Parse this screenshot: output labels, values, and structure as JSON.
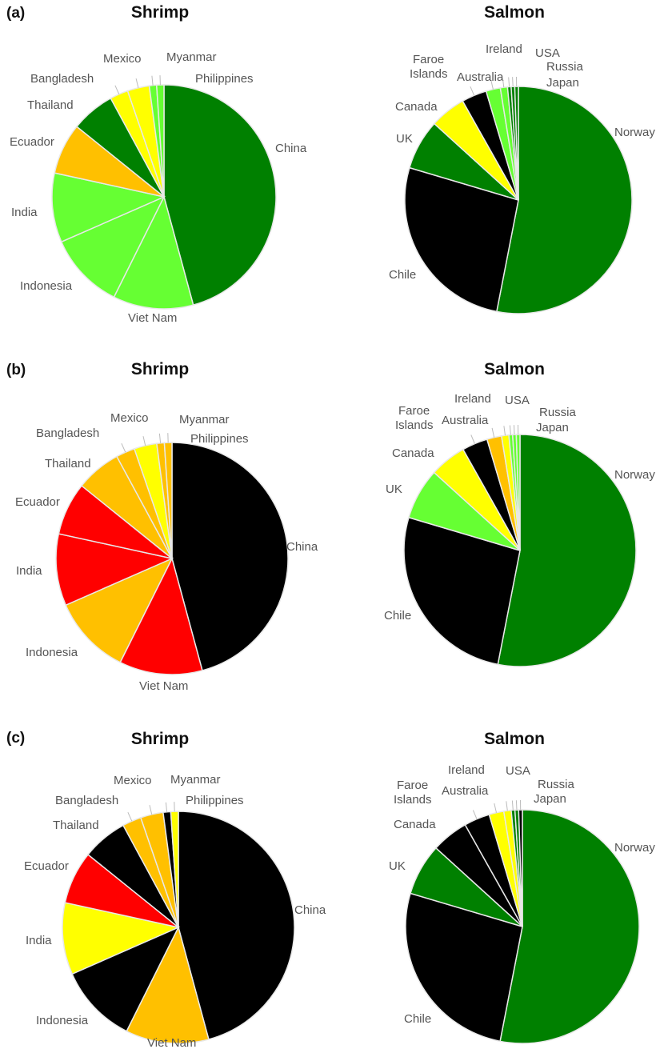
{
  "panels": [
    {
      "letter": "(a)",
      "shrimp_title": "Shrimp",
      "salmon_title": "Salmon"
    },
    {
      "letter": "(b)",
      "shrimp_title": "Shrimp",
      "salmon_title": "Salmon"
    },
    {
      "letter": "(c)",
      "shrimp_title": "Shrimp",
      "salmon_title": "Salmon"
    }
  ],
  "colors": {
    "dark_green": "#008000",
    "light_green": "#66ff33",
    "orange": "#ffc000",
    "yellow": "#ffff00",
    "red": "#ff0000",
    "black": "#000000",
    "border": "#e8e8e8",
    "label": "#555555"
  },
  "chart_data": [
    {
      "type": "pie",
      "panel": "(a)",
      "title": "Shrimp",
      "labels": [
        "China",
        "Viet Nam",
        "Indonesia",
        "India",
        "Ecuador",
        "Thailand",
        "Bangladesh",
        "Mexico",
        "Myanmar",
        "Philippines"
      ],
      "values": [
        43.5,
        11,
        10.5,
        9.5,
        7,
        6,
        2.5,
        3,
        1,
        1
      ],
      "colors": [
        "#008000",
        "#66ff33",
        "#66ff33",
        "#66ff33",
        "#ffc000",
        "#008000",
        "#ffff00",
        "#ffff00",
        "#66ff33",
        "#66ff33"
      ]
    },
    {
      "type": "pie",
      "panel": "(a)",
      "title": "Salmon",
      "labels": [
        "Norway",
        "Chile",
        "UK",
        "Canada",
        "Faroe Islands",
        "Australia",
        "Ireland",
        "USA",
        "Russia",
        "Japan"
      ],
      "values": [
        52,
        26,
        7,
        5,
        3.5,
        2,
        1,
        0.5,
        0.5,
        0.5
      ],
      "colors": [
        "#008000",
        "#000000",
        "#008000",
        "#ffff00",
        "#000000",
        "#66ff33",
        "#66ff33",
        "#008000",
        "#008000",
        "#008000"
      ]
    },
    {
      "type": "pie",
      "panel": "(b)",
      "title": "Shrimp",
      "labels": [
        "China",
        "Viet Nam",
        "Indonesia",
        "India",
        "Ecuador",
        "Thailand",
        "Bangladesh",
        "Mexico",
        "Myanmar",
        "Philippines"
      ],
      "values": [
        43.5,
        11,
        10.5,
        9.5,
        7,
        6,
        2.5,
        3,
        1,
        1
      ],
      "colors": [
        "#000000",
        "#ff0000",
        "#ffc000",
        "#ff0000",
        "#ff0000",
        "#ffc000",
        "#ffc000",
        "#ffff00",
        "#ffc000",
        "#ffc000"
      ]
    },
    {
      "type": "pie",
      "panel": "(b)",
      "title": "Salmon",
      "labels": [
        "Norway",
        "Chile",
        "UK",
        "Canada",
        "Faroe Islands",
        "Australia",
        "Ireland",
        "USA",
        "Russia",
        "Japan"
      ],
      "values": [
        52,
        26,
        7,
        5,
        3.5,
        2,
        1,
        0.5,
        0.5,
        0.5
      ],
      "colors": [
        "#008000",
        "#000000",
        "#66ff33",
        "#ffff00",
        "#000000",
        "#ffc000",
        "#ffff00",
        "#66ff33",
        "#66ff33",
        "#66ff33"
      ]
    },
    {
      "type": "pie",
      "panel": "(c)",
      "title": "Shrimp",
      "labels": [
        "China",
        "Viet Nam",
        "Indonesia",
        "India",
        "Ecuador",
        "Thailand",
        "Bangladesh",
        "Mexico",
        "Myanmar",
        "Philippines"
      ],
      "values": [
        43.5,
        11,
        10.5,
        9.5,
        7,
        6,
        2.5,
        3,
        1,
        1
      ],
      "colors": [
        "#000000",
        "#ffc000",
        "#000000",
        "#ffff00",
        "#ff0000",
        "#000000",
        "#ffc000",
        "#ffc000",
        "#000000",
        "#ffff00"
      ]
    },
    {
      "type": "pie",
      "panel": "(c)",
      "title": "Salmon",
      "labels": [
        "Norway",
        "Chile",
        "UK",
        "Canada",
        "Faroe Islands",
        "Australia",
        "Ireland",
        "USA",
        "Russia",
        "Japan"
      ],
      "values": [
        52,
        26,
        7,
        5,
        3.5,
        2,
        1,
        0.5,
        0.5,
        0.5
      ],
      "colors": [
        "#008000",
        "#000000",
        "#008000",
        "#000000",
        "#000000",
        "#ffff00",
        "#ffff00",
        "#008000",
        "#008000",
        "#000000"
      ]
    }
  ]
}
